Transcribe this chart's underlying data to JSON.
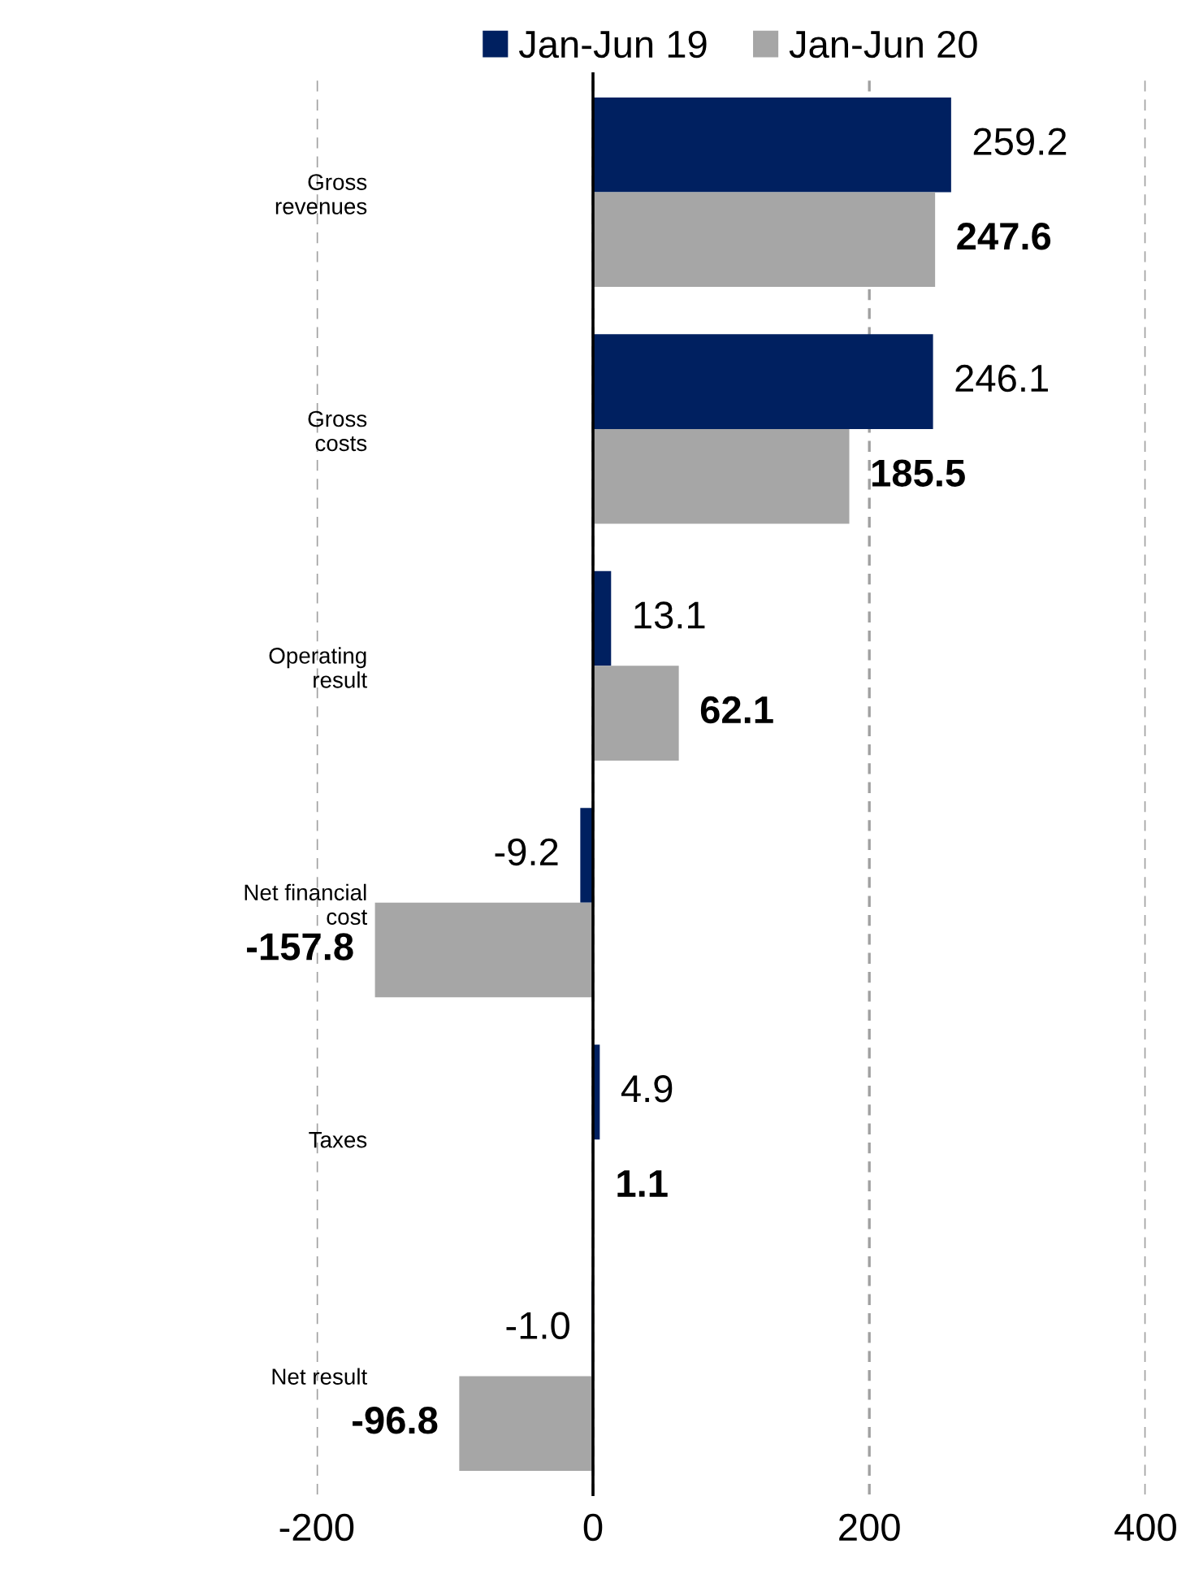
{
  "chart_data": {
    "type": "bar",
    "orientation": "horizontal",
    "categories": [
      "Gross\nrevenues",
      "Gross\ncosts",
      "Operating\nresult",
      "Net financial\ncost",
      "Taxes",
      "Net result"
    ],
    "series": [
      {
        "name": "Jan-Jun 19",
        "color": "#002060",
        "values": [
          259.2,
          246.1,
          13.1,
          -9.2,
          4.9,
          -1.0
        ],
        "value_labels": [
          "259.2",
          "246.1",
          "13.1",
          "-9.2",
          "4.9",
          "-1.0"
        ]
      },
      {
        "name": "Jan-Jun 20",
        "color": "#a6a6a6",
        "values": [
          247.6,
          185.5,
          62.1,
          -157.8,
          1.1,
          -96.8
        ],
        "value_labels": [
          "247.6",
          "185.5",
          "62.1",
          "-157.8",
          "1.1",
          "-96.8"
        ]
      }
    ],
    "xlim": [
      -200,
      400
    ],
    "xticks": [
      -200,
      0,
      200,
      400
    ],
    "grid": "x",
    "legend": "top"
  }
}
